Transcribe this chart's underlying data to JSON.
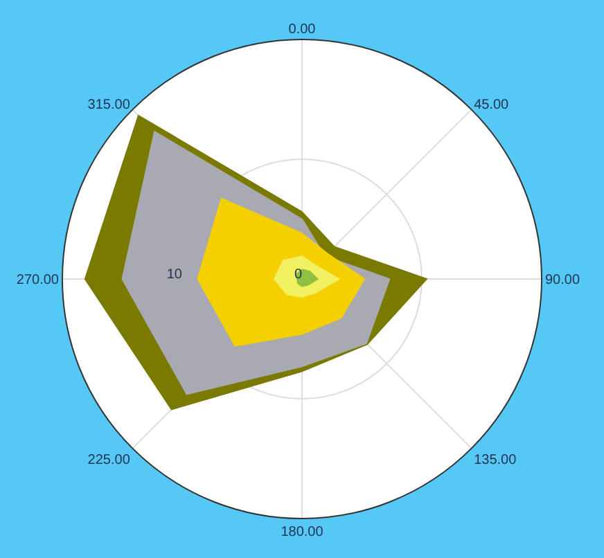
{
  "chart_data": {
    "type": "radar",
    "categories": [
      "0.00",
      "45.00",
      "90.00",
      "135.00",
      "180.00",
      "225.00",
      "270.00",
      "315.00"
    ],
    "series": [
      {
        "color": "#7a7a00",
        "values": [
          5.6,
          3.8,
          10.4,
          7.7,
          7.7,
          15.4,
          18.1,
          19.3
        ]
      },
      {
        "color": "#a9a9b1",
        "values": [
          5.0,
          2.7,
          7.3,
          7.6,
          7.3,
          13.6,
          15.0,
          17.4
        ]
      },
      {
        "color": "#f5d000",
        "values": [
          3.8,
          3.0,
          5.2,
          4.6,
          4.6,
          7.9,
          8.7,
          9.5
        ]
      },
      {
        "color": "#f0f060",
        "values": [
          1.9,
          1.6,
          3.1,
          1.6,
          1.5,
          1.8,
          2.3,
          2.2
        ]
      },
      {
        "color": "#90c040",
        "values": [
          0.8,
          0.9,
          1.3,
          0.7,
          0.6,
          0.5,
          0.4,
          0.6
        ]
      }
    ],
    "ylim": [
      0,
      20
    ],
    "yticks": [
      0,
      10
    ],
    "grid": true
  }
}
